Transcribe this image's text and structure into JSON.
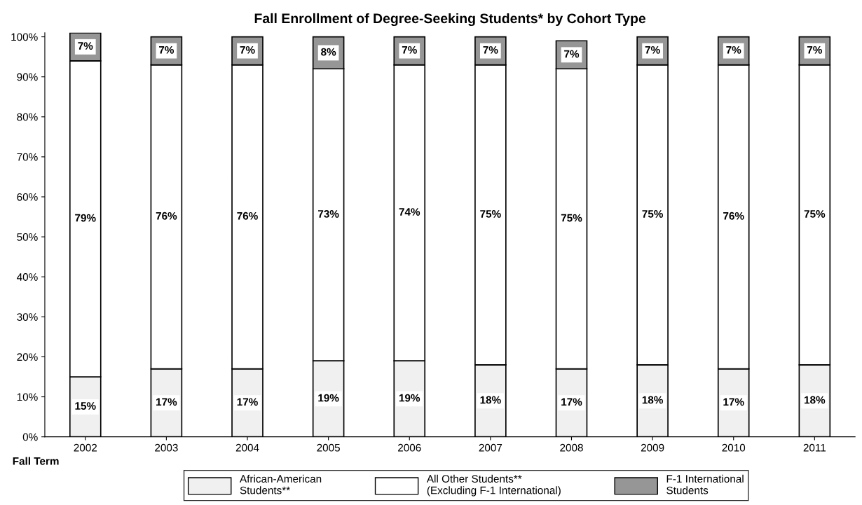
{
  "chart_data": {
    "type": "bar",
    "stacked": true,
    "title": "Fall Enrollment of Degree-Seeking Students* by Cohort Type",
    "xlabel": "Fall Term",
    "categories": [
      "2002",
      "2003",
      "2004",
      "2005",
      "2006",
      "2007",
      "2008",
      "2009",
      "2010",
      "2011"
    ],
    "series": [
      {
        "name": "African-American\nStudents**",
        "color": "#f0f0f0",
        "values": [
          15,
          17,
          17,
          19,
          19,
          18,
          17,
          18,
          17,
          18
        ],
        "value_labels": [
          "15%",
          "17%",
          "17%",
          "19%",
          "19%",
          "18%",
          "17%",
          "18%",
          "17%",
          "18%"
        ]
      },
      {
        "name": "All Other Students**\n(Excluding F-1 International)",
        "color": "#ffffff",
        "values": [
          79,
          76,
          76,
          73,
          74,
          75,
          75,
          75,
          76,
          75
        ],
        "value_labels": [
          "79%",
          "76%",
          "76%",
          "73%",
          "74%",
          "75%",
          "75%",
          "75%",
          "76%",
          "75%"
        ]
      },
      {
        "name": "F-1 International\nStudents",
        "color": "#969696",
        "values": [
          7,
          7,
          7,
          8,
          7,
          7,
          7,
          7,
          7,
          7
        ],
        "value_labels": [
          "7%",
          "7%",
          "7%",
          "8%",
          "7%",
          "7%",
          "7%",
          "7%",
          "7%",
          "7%"
        ]
      }
    ],
    "ylim": [
      0,
      101
    ],
    "yticks": [
      {
        "value": 0,
        "label": "0%"
      },
      {
        "value": 10,
        "label": "10%"
      },
      {
        "value": 20,
        "label": "20%"
      },
      {
        "value": 30,
        "label": "30%"
      },
      {
        "value": 40,
        "label": "40%"
      },
      {
        "value": 50,
        "label": "50%"
      },
      {
        "value": 60,
        "label": "60%"
      },
      {
        "value": 70,
        "label": "70%"
      },
      {
        "value": 80,
        "label": "80%"
      },
      {
        "value": 90,
        "label": "90%"
      },
      {
        "value": 100,
        "label": "100%"
      }
    ],
    "grid": false,
    "legend": "bottom"
  }
}
